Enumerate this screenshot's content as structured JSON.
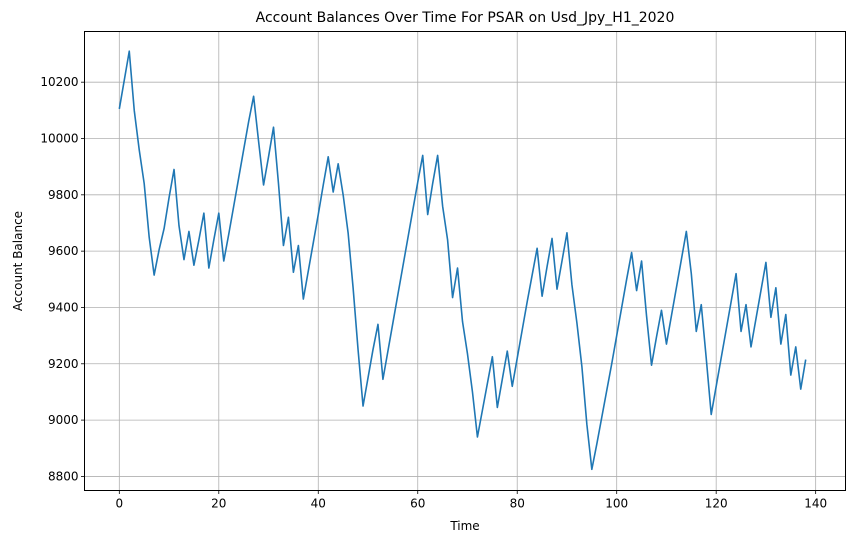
{
  "chart_data": {
    "type": "line",
    "title": "Account Balances Over Time For PSAR on Usd_Jpy_H1_2020",
    "xlabel": "Time",
    "ylabel": "Account Balance",
    "xlim": [
      -7,
      146
    ],
    "ylim": [
      8750,
      10380
    ],
    "xticks": [
      0,
      20,
      40,
      60,
      80,
      100,
      120,
      140
    ],
    "yticks": [
      8800,
      9000,
      9200,
      9400,
      9600,
      9800,
      10000,
      10200
    ],
    "grid": true,
    "line_color": "#1f77b4",
    "series": [
      {
        "x": [
          0,
          2,
          3,
          4,
          5,
          6,
          7,
          8,
          9,
          10,
          11,
          12,
          13,
          14,
          15,
          16,
          17,
          18,
          19,
          20,
          21,
          22,
          23,
          24,
          25,
          26,
          27,
          28,
          29,
          30,
          31,
          32,
          33,
          34,
          35,
          36,
          37,
          38,
          39,
          40,
          41,
          42,
          43,
          44,
          45,
          46,
          47,
          48,
          49,
          50,
          51,
          52,
          53,
          54,
          55,
          56,
          57,
          58,
          59,
          60,
          61,
          62,
          63,
          64,
          65,
          66,
          67,
          68,
          69,
          70,
          71,
          72,
          73,
          74,
          75,
          76,
          77,
          78,
          79,
          80,
          81,
          82,
          83,
          84,
          85,
          86,
          87,
          88,
          89,
          90,
          91,
          92,
          93,
          94,
          95,
          96,
          97,
          98,
          99,
          100,
          101,
          102,
          103,
          104,
          105,
          106,
          107,
          108,
          109,
          110,
          111,
          112,
          113,
          114,
          115,
          116,
          117,
          118,
          119,
          120,
          121,
          122,
          123,
          124,
          125,
          126,
          127,
          128,
          129,
          130,
          131,
          132,
          133,
          134,
          135,
          136,
          137,
          138
        ],
        "values": [
          10105,
          10310,
          10100,
          9960,
          9840,
          9650,
          9515,
          9605,
          9680,
          9790,
          9890,
          9690,
          9570,
          9670,
          9550,
          9640,
          9735,
          9540,
          9640,
          9735,
          9565,
          9660,
          9760,
          9860,
          9960,
          10060,
          10150,
          9990,
          9835,
          9935,
          10040,
          9840,
          9620,
          9720,
          9525,
          9620,
          9430,
          9530,
          9630,
          9730,
          9835,
          9935,
          9810,
          9910,
          9800,
          9665,
          9470,
          9250,
          9050,
          9150,
          9250,
          9340,
          9145,
          9245,
          9345,
          9445,
          9545,
          9645,
          9745,
          9845,
          9940,
          9730,
          9840,
          9940,
          9760,
          9640,
          9435,
          9540,
          9350,
          9235,
          9100,
          8940,
          9035,
          9130,
          9225,
          9045,
          9145,
          9245,
          9120,
          9220,
          9320,
          9420,
          9515,
          9610,
          9440,
          9545,
          9645,
          9465,
          9565,
          9665,
          9480,
          9345,
          9190,
          8985,
          8825,
          8915,
          9010,
          9105,
          9200,
          9300,
          9400,
          9500,
          9595,
          9460,
          9565,
          9370,
          9195,
          9295,
          9390,
          9270,
          9370,
          9470,
          9570,
          9670,
          9520,
          9315,
          9410,
          9220,
          9020,
          9120,
          9220,
          9320,
          9420,
          9520,
          9315,
          9410,
          9260,
          9360,
          9460,
          9560,
          9365,
          9470,
          9270,
          9375,
          9160,
          9260,
          9110,
          9215
        ]
      }
    ]
  }
}
